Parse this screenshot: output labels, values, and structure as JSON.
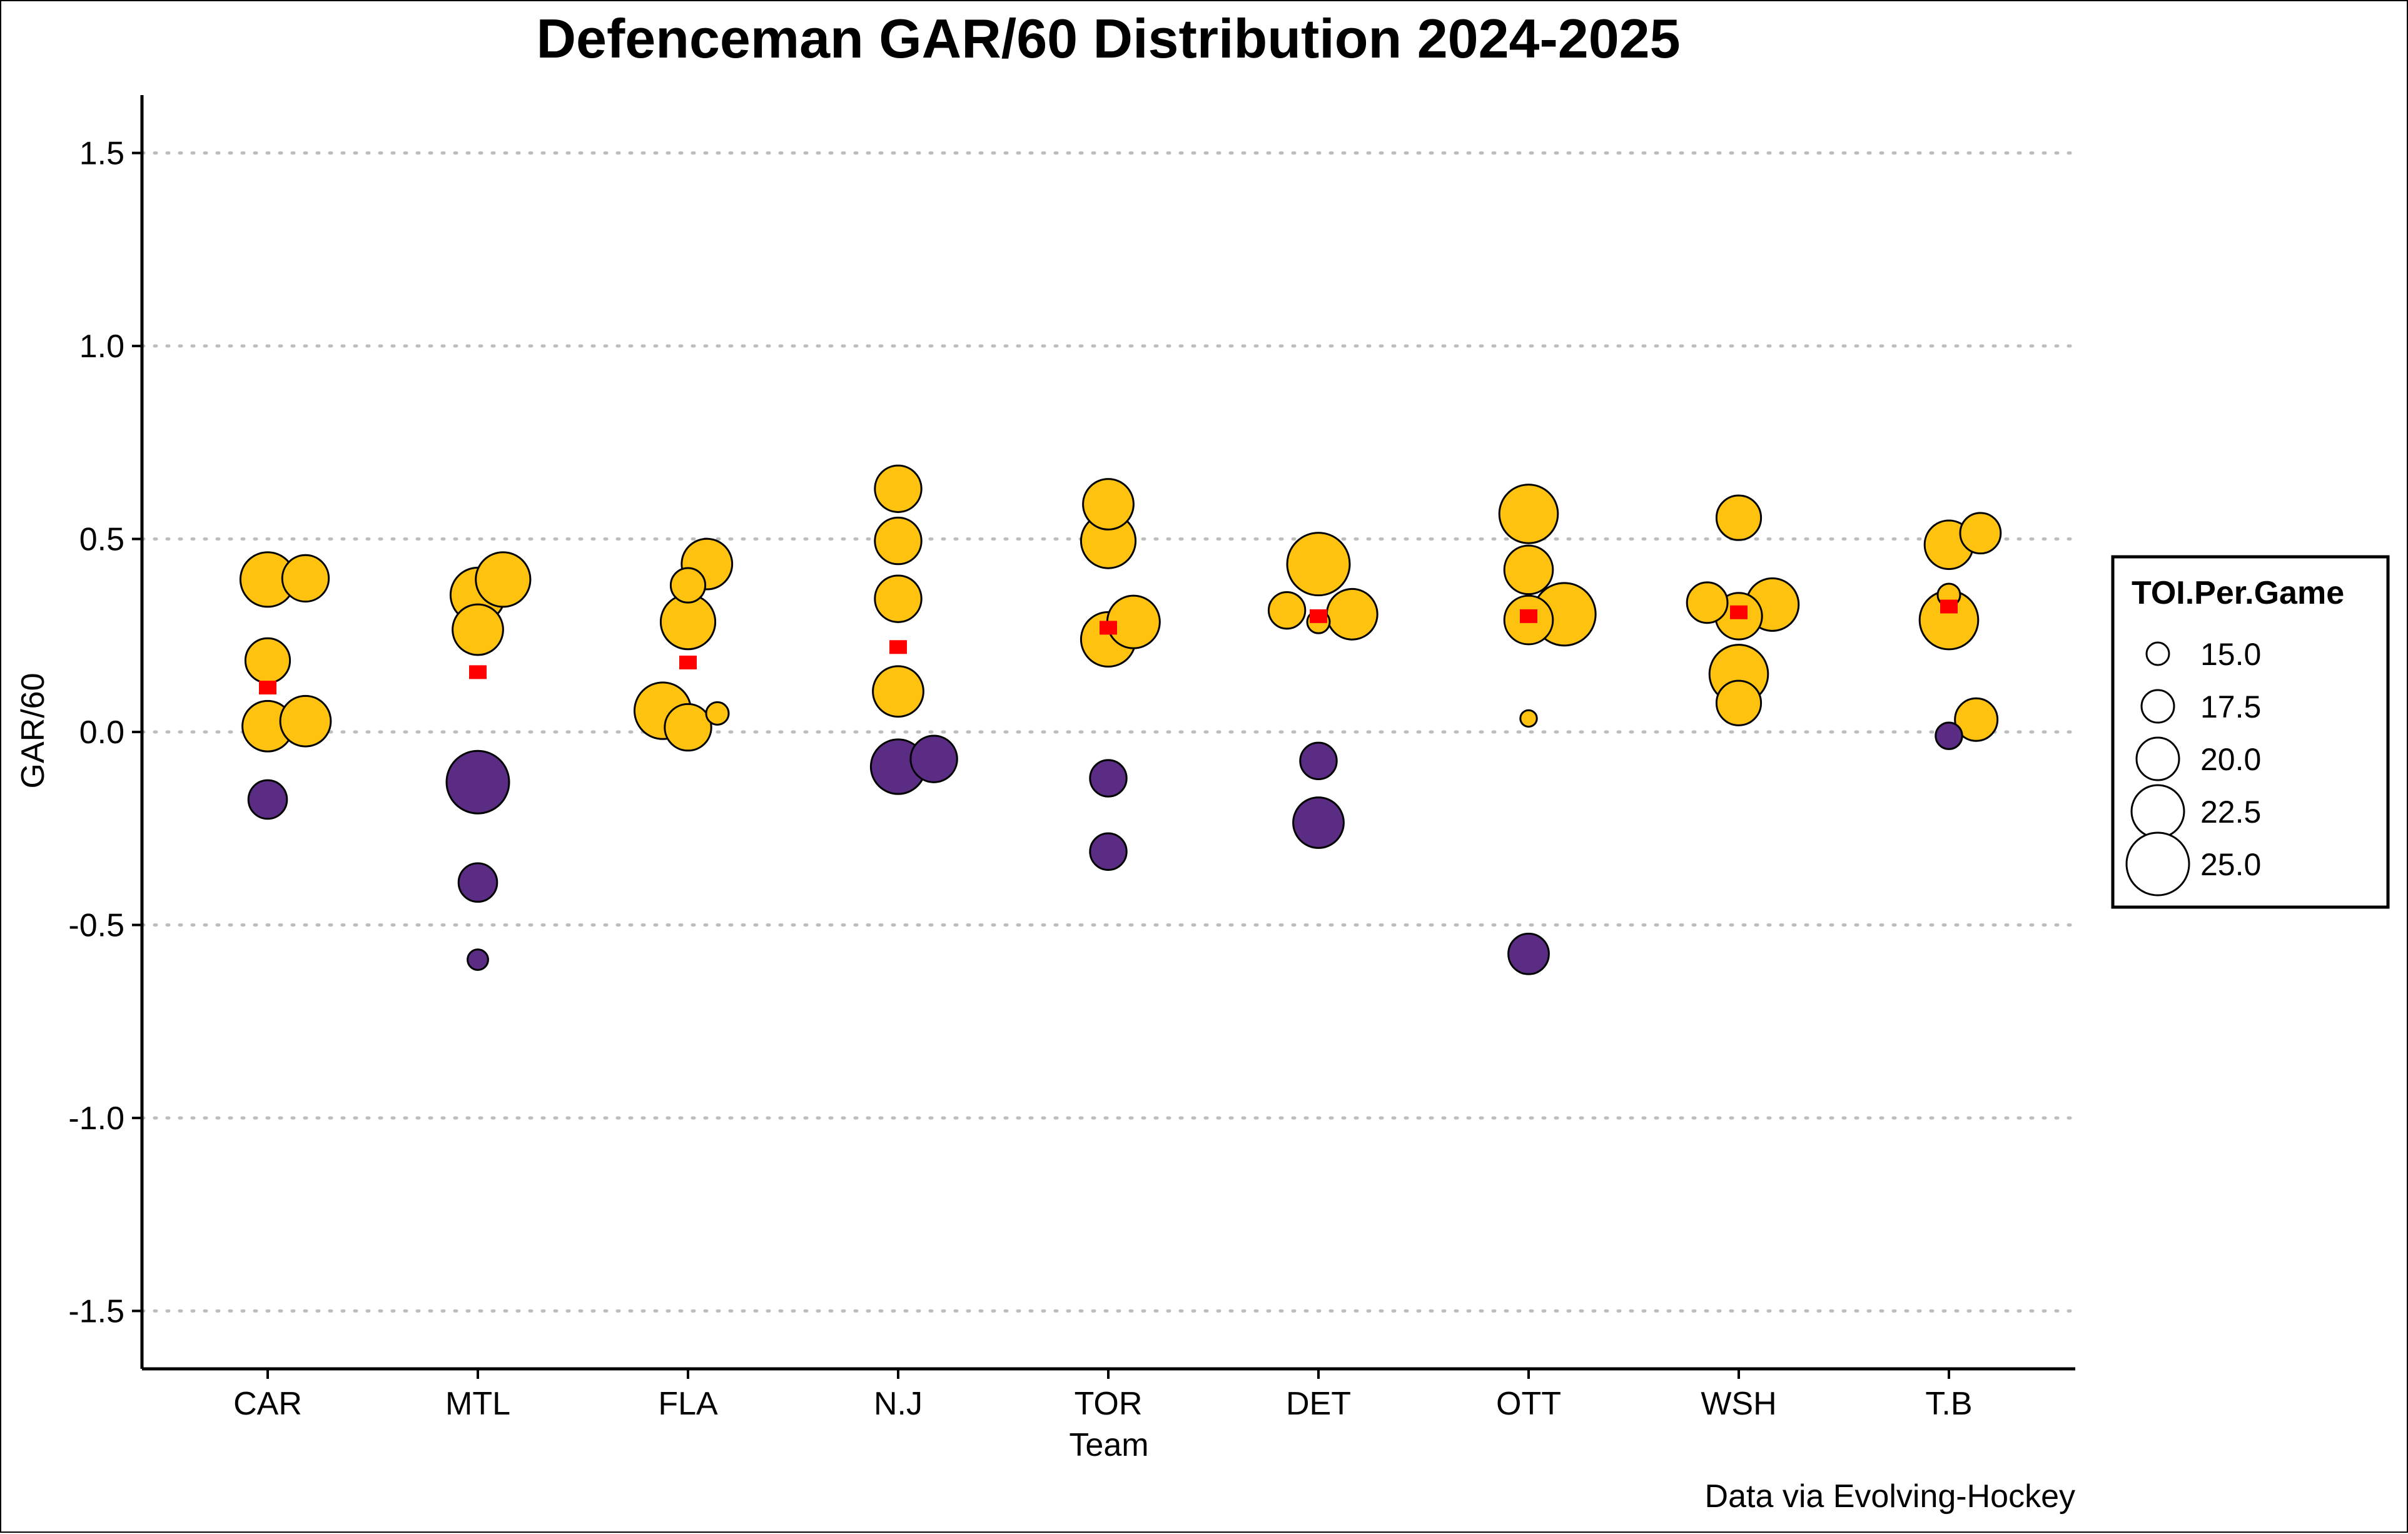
{
  "chart_data": {
    "type": "scatter",
    "title": "Defenceman GAR/60 Distribution 2024-2025",
    "xlabel": "Team",
    "ylabel": "GAR/60",
    "caption": "Data via Evolving-Hockey",
    "categories": [
      "CAR",
      "MTL",
      "FLA",
      "N.J",
      "TOR",
      "DET",
      "OTT",
      "WSH",
      "T.B"
    ],
    "ylim": [
      -1.65,
      1.65
    ],
    "yticks": [
      1.5,
      1.0,
      0.5,
      0.0,
      -0.5,
      -1.0,
      -1.5
    ],
    "ytick_labels": [
      "1.5",
      "1.0",
      "0.5",
      "0.0",
      "-0.5",
      "-1.0",
      "-1.5"
    ],
    "grid": "horizontal dotted",
    "colors": {
      "positive": "#FFC20E",
      "negative": "#5B2C83",
      "mean": "#FF0000",
      "outline": "#000000",
      "grid": "#BDBDBD"
    },
    "legend": {
      "title": "TOI.Per.Game",
      "position": "right",
      "entries": [
        {
          "label": "15.0",
          "value": 15.0
        },
        {
          "label": "17.5",
          "value": 17.5
        },
        {
          "label": "20.0",
          "value": 20.0
        },
        {
          "label": "22.5",
          "value": 22.5
        },
        {
          "label": "25.0",
          "value": 25.0
        }
      ]
    },
    "team_means": [
      {
        "team": "CAR",
        "value": 0.115
      },
      {
        "team": "MTL",
        "value": 0.155
      },
      {
        "team": "FLA",
        "value": 0.18
      },
      {
        "team": "N.J",
        "value": 0.22
      },
      {
        "team": "TOR",
        "value": 0.27
      },
      {
        "team": "DET",
        "value": 0.3
      },
      {
        "team": "OTT",
        "value": 0.3
      },
      {
        "team": "WSH",
        "value": 0.31
      },
      {
        "team": "T.B",
        "value": 0.325
      }
    ],
    "points": [
      {
        "team": "CAR",
        "jitter": 0.0,
        "gar60": 0.395,
        "toi": 23.0
      },
      {
        "team": "CAR",
        "jitter": 0.18,
        "gar60": 0.398,
        "toi": 21.0
      },
      {
        "team": "CAR",
        "jitter": 0.0,
        "gar60": 0.185,
        "toi": 20.5
      },
      {
        "team": "CAR",
        "jitter": 0.0,
        "gar60": 0.015,
        "toi": 22.0
      },
      {
        "team": "CAR",
        "jitter": 0.18,
        "gar60": 0.028,
        "toi": 22.0
      },
      {
        "team": "CAR",
        "jitter": 0.0,
        "gar60": -0.175,
        "toi": 19.0
      },
      {
        "team": "MTL",
        "jitter": 0.0,
        "gar60": 0.355,
        "toi": 23.0
      },
      {
        "team": "MTL",
        "jitter": 0.12,
        "gar60": 0.395,
        "toi": 23.0
      },
      {
        "team": "MTL",
        "jitter": 0.0,
        "gar60": 0.265,
        "toi": 22.0
      },
      {
        "team": "MTL",
        "jitter": 0.0,
        "gar60": -0.13,
        "toi": 25.0
      },
      {
        "team": "MTL",
        "jitter": 0.0,
        "gar60": -0.39,
        "toi": 19.0
      },
      {
        "team": "MTL",
        "jitter": 0.0,
        "gar60": -0.59,
        "toi": 14.5
      },
      {
        "team": "FLA",
        "jitter": 0.0,
        "gar60": 0.38,
        "toi": 18.0
      },
      {
        "team": "FLA",
        "jitter": 0.09,
        "gar60": 0.435,
        "toi": 22.0
      },
      {
        "team": "FLA",
        "jitter": 0.0,
        "gar60": 0.285,
        "toi": 23.0
      },
      {
        "team": "FLA",
        "jitter": -0.12,
        "gar60": 0.055,
        "toi": 23.5
      },
      {
        "team": "FLA",
        "jitter": 0.0,
        "gar60": 0.012,
        "toi": 21.0
      },
      {
        "team": "FLA",
        "jitter": 0.14,
        "gar60": 0.048,
        "toi": 15.0
      },
      {
        "team": "N.J",
        "jitter": 0.0,
        "gar60": 0.63,
        "toi": 21.0
      },
      {
        "team": "N.J",
        "jitter": 0.0,
        "gar60": 0.495,
        "toi": 21.0
      },
      {
        "team": "N.J",
        "jitter": 0.0,
        "gar60": 0.345,
        "toi": 21.0
      },
      {
        "team": "N.J",
        "jitter": 0.0,
        "gar60": 0.105,
        "toi": 22.0
      },
      {
        "team": "N.J",
        "jitter": 0.0,
        "gar60": -0.09,
        "toi": 23.0
      },
      {
        "team": "N.J",
        "jitter": 0.17,
        "gar60": -0.07,
        "toi": 21.0
      },
      {
        "team": "TOR",
        "jitter": 0.0,
        "gar60": 0.59,
        "toi": 22.0
      },
      {
        "team": "TOR",
        "jitter": 0.0,
        "gar60": 0.495,
        "toi": 23.0
      },
      {
        "team": "TOR",
        "jitter": 0.12,
        "gar60": 0.285,
        "toi": 22.5
      },
      {
        "team": "TOR",
        "jitter": 0.0,
        "gar60": 0.24,
        "toi": 23.0
      },
      {
        "team": "TOR",
        "jitter": 0.0,
        "gar60": -0.12,
        "toi": 18.5
      },
      {
        "team": "TOR",
        "jitter": 0.0,
        "gar60": -0.31,
        "toi": 18.5
      },
      {
        "team": "DET",
        "jitter": 0.0,
        "gar60": 0.435,
        "toi": 25.0
      },
      {
        "team": "DET",
        "jitter": -0.15,
        "gar60": 0.315,
        "toi": 18.5
      },
      {
        "team": "DET",
        "jitter": 0.16,
        "gar60": 0.305,
        "toi": 22.0
      },
      {
        "team": "DET",
        "jitter": 0.0,
        "gar60": 0.285,
        "toi": 15.0
      },
      {
        "team": "DET",
        "jitter": 0.0,
        "gar60": -0.075,
        "toi": 18.5
      },
      {
        "team": "DET",
        "jitter": 0.0,
        "gar60": -0.235,
        "toi": 22.0
      },
      {
        "team": "OTT",
        "jitter": 0.0,
        "gar60": 0.565,
        "toi": 24.0
      },
      {
        "team": "OTT",
        "jitter": 0.0,
        "gar60": 0.42,
        "toi": 21.5
      },
      {
        "team": "OTT",
        "jitter": 0.0,
        "gar60": 0.29,
        "toi": 21.5
      },
      {
        "team": "OTT",
        "jitter": 0.17,
        "gar60": 0.305,
        "toi": 25.0
      },
      {
        "team": "OTT",
        "jitter": 0.0,
        "gar60": 0.035,
        "toi": 13.5
      },
      {
        "team": "OTT",
        "jitter": 0.0,
        "gar60": -0.575,
        "toi": 19.5
      },
      {
        "team": "WSH",
        "jitter": 0.0,
        "gar60": 0.555,
        "toi": 20.5
      },
      {
        "team": "WSH",
        "jitter": -0.15,
        "gar60": 0.335,
        "toi": 19.5
      },
      {
        "team": "WSH",
        "jitter": 0.16,
        "gar60": 0.33,
        "toi": 22.5
      },
      {
        "team": "WSH",
        "jitter": 0.0,
        "gar60": 0.3,
        "toi": 21.0
      },
      {
        "team": "WSH",
        "jitter": 0.0,
        "gar60": 0.15,
        "toi": 24.0
      },
      {
        "team": "WSH",
        "jitter": 0.0,
        "gar60": 0.075,
        "toi": 20.5
      },
      {
        "team": "T.B",
        "jitter": 0.0,
        "gar60": 0.485,
        "toi": 21.5
      },
      {
        "team": "T.B",
        "jitter": 0.15,
        "gar60": 0.515,
        "toi": 19.5
      },
      {
        "team": "T.B",
        "jitter": 0.0,
        "gar60": 0.355,
        "toi": 15.0
      },
      {
        "team": "T.B",
        "jitter": 0.0,
        "gar60": 0.29,
        "toi": 24.0
      },
      {
        "team": "T.B",
        "jitter": 0.13,
        "gar60": 0.032,
        "toi": 20.0
      },
      {
        "team": "T.B",
        "jitter": 0.0,
        "gar60": -0.01,
        "toi": 16.0
      }
    ]
  }
}
